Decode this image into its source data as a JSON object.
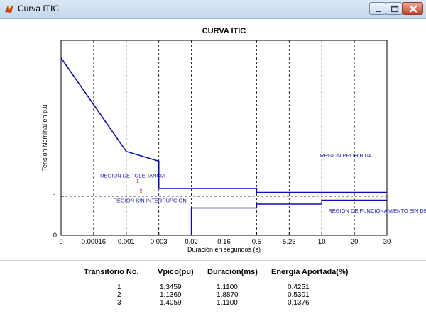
{
  "window": {
    "title": "Curva ITIC",
    "buttons": {
      "minimize": "minimize",
      "maximize": "maximize",
      "close": "close"
    }
  },
  "chart_data": {
    "type": "line",
    "title": "CURVA ITIC",
    "xlabel": "Duración en segundos (s)",
    "ylabel": "Tensión Nominal en p.u",
    "x_ticks": [
      "0",
      "0.00016",
      "0.001",
      "0.003",
      "0.02",
      "0.16",
      "0.5",
      "5.25",
      "10",
      "20",
      "30"
    ],
    "y_ticks": [
      "0",
      "1"
    ],
    "ylim": [
      0,
      5
    ],
    "grid": "vertical dashed at each x tick; horizontal dashed at y=1",
    "series": [
      {
        "x": [
          0,
          2,
          3,
          3,
          6,
          6,
          10
        ],
        "y": [
          4.55,
          2.15,
          1.9,
          1.2,
          1.2,
          1.1,
          1.1
        ]
      },
      {
        "x": [
          4,
          4,
          6,
          6,
          8,
          8,
          10
        ],
        "y": [
          0,
          0.7,
          0.7,
          0.8,
          0.8,
          0.9,
          0.9
        ]
      }
    ],
    "annotations": [
      {
        "text": "REGION DE TOLERANCIA",
        "x": 1.2,
        "y": 1.48
      },
      {
        "text": "REGION SIN INTERRUPCION",
        "x": 1.6,
        "y": 0.85
      },
      {
        "text": "REGION PROHIBIDA",
        "x": 7.95,
        "y": 2.0
      },
      {
        "text": "REGION DE FUNCIONAMIENTO SIN DETERIORO",
        "x": 8.2,
        "y": 0.58
      }
    ],
    "points": [
      {
        "label": "1",
        "x": 2.35,
        "y": 1.35
      },
      {
        "label": "2",
        "x": 2.45,
        "y": 1.1
      }
    ],
    "colors": {
      "curve": "#0b0bb8",
      "text": "#1a1ab0",
      "points": "#cc0000",
      "grid": "#000000"
    }
  },
  "results": {
    "headers": [
      "Transitorio No.",
      "Vpico(pu)",
      "Duración(ms)",
      "Energía Aportada(%)"
    ],
    "rows": [
      [
        "1",
        "1.3459",
        "1.1100",
        "0.4251"
      ],
      [
        "2",
        "1.1369",
        "1.8870",
        "0.5301"
      ],
      [
        "3",
        "1.4059",
        "1.1100",
        "0.1376"
      ]
    ]
  }
}
